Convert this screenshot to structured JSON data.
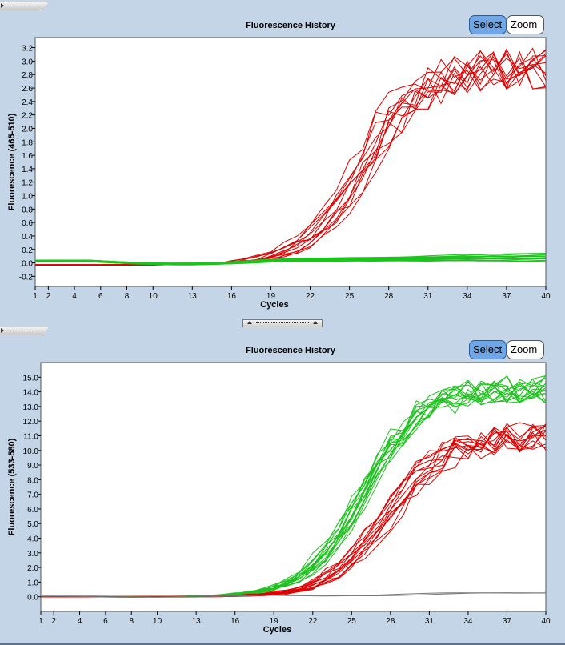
{
  "panels": [
    {
      "id": "top",
      "title": "Fluorescence History",
      "select_label": "Select",
      "zoom_label": "Zoom",
      "chart_data": {
        "type": "line",
        "title": "Fluorescence History",
        "xlabel": "Cycles",
        "ylabel": "Fluorescence (465-510)",
        "xlim": [
          1,
          40
        ],
        "ylim": [
          -0.35,
          3.35
        ],
        "xticks": [
          1,
          2,
          4,
          6,
          8,
          10,
          13,
          16,
          19,
          22,
          25,
          28,
          31,
          34,
          37,
          40
        ],
        "yticks": [
          -0.2,
          0.0,
          0.2,
          0.4,
          0.6,
          0.8,
          1.0,
          1.2,
          1.4,
          1.6,
          1.8,
          2.0,
          2.2,
          2.4,
          2.6,
          2.8,
          3.0,
          3.2
        ],
        "ytick_labels": [
          "-0.2",
          "0.0",
          "0.2",
          "0.4",
          "0.6",
          "0.8",
          "1.0",
          "1.2",
          "1.4",
          "1.6",
          "1.8",
          "2.0",
          "2.2",
          "2.4",
          "2.6",
          "2.8",
          "3.0",
          "3.2"
        ],
        "series_groups": [
          {
            "name": "amplified",
            "color": "#dd0000",
            "shape": "sigmoid",
            "count": 12,
            "midpoint_range": [
              24.8,
              27.2
            ],
            "plateau_range": [
              2.6,
              3.25
            ],
            "baseline": -0.03
          },
          {
            "name": "negative",
            "color": "#1ec21e",
            "shape": "flat",
            "count": 16,
            "start_level": 0.03,
            "end_range": [
              0.02,
              0.15
            ],
            "baseline": -0.05
          }
        ]
      }
    },
    {
      "id": "bottom",
      "title": "Fluorescence History",
      "select_label": "Select",
      "zoom_label": "Zoom",
      "chart_data": {
        "type": "line",
        "title": "Fluorescence History",
        "xlabel": "Cycles",
        "ylabel": "Fluorescence (533-580)",
        "xlim": [
          1,
          40
        ],
        "ylim": [
          -1.0,
          16.0
        ],
        "xticks": [
          1,
          2,
          4,
          6,
          8,
          10,
          13,
          16,
          19,
          22,
          25,
          28,
          31,
          34,
          37,
          40
        ],
        "yticks": [
          0.0,
          1.0,
          2.0,
          3.0,
          4.0,
          5.0,
          6.0,
          7.0,
          8.0,
          9.0,
          10.0,
          11.0,
          12.0,
          13.0,
          14.0,
          15.0
        ],
        "ytick_labels": [
          "0.0",
          "1.0",
          "2.0",
          "3.0",
          "4.0",
          "5.0",
          "6.0",
          "7.0",
          "8.0",
          "9.0",
          "10.0",
          "11.0",
          "12.0",
          "13.0",
          "14.0",
          "15.0"
        ],
        "series_groups": [
          {
            "name": "green-amplified",
            "color": "#1ec21e",
            "shape": "sigmoid",
            "count": 16,
            "midpoint_range": [
              25.3,
              26.6
            ],
            "plateau_range": [
              13.2,
              15.2
            ],
            "baseline": 0.0
          },
          {
            "name": "red-amplified",
            "color": "#dd0000",
            "shape": "sigmoid",
            "count": 13,
            "midpoint_range": [
              26.7,
              28.6
            ],
            "plateau_range": [
              10.0,
              12.0
            ],
            "baseline": 0.0
          },
          {
            "name": "gray-negative",
            "color": "#777777",
            "shape": "flat",
            "count": 2,
            "start_level": 0.0,
            "end_range": [
              0.25,
              0.35
            ],
            "baseline": 0.0
          }
        ]
      }
    }
  ]
}
